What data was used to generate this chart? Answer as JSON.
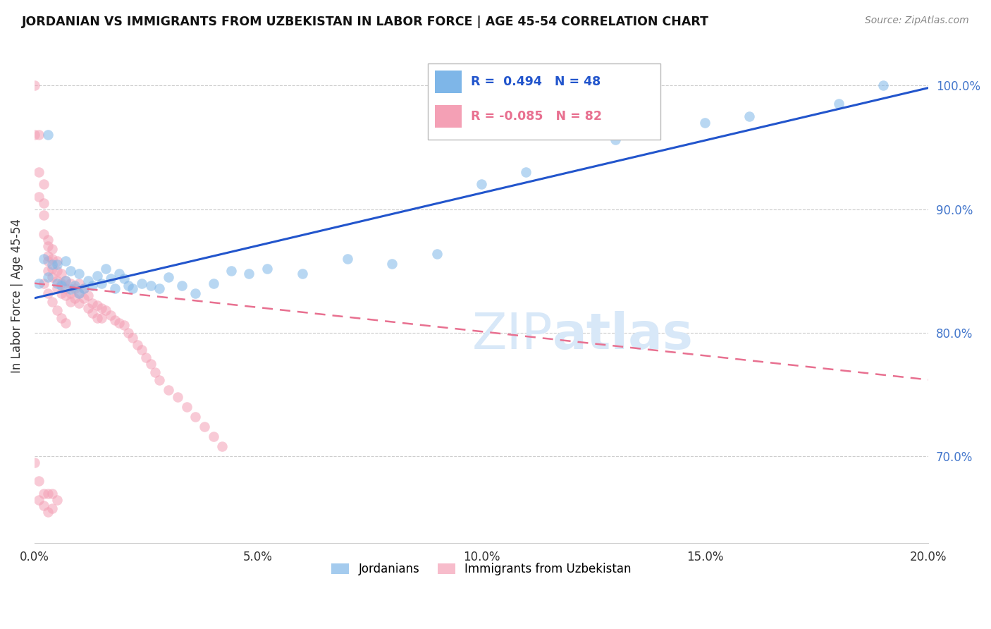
{
  "title": "JORDANIAN VS IMMIGRANTS FROM UZBEKISTAN IN LABOR FORCE | AGE 45-54 CORRELATION CHART",
  "source": "Source: ZipAtlas.com",
  "ylabel": "In Labor Force | Age 45-54",
  "xlim": [
    0.0,
    0.2
  ],
  "ylim": [
    0.63,
    1.03
  ],
  "yticks_right": [
    0.7,
    0.8,
    0.9,
    1.0
  ],
  "ytick_labels_right": [
    "70.0%",
    "80.0%",
    "90.0%",
    "100.0%"
  ],
  "xticks": [
    0.0,
    0.05,
    0.1,
    0.15,
    0.2
  ],
  "xtick_labels": [
    "0.0%",
    "5.0%",
    "10.0%",
    "15.0%",
    "20.0%"
  ],
  "legend_blue_r": "R =  0.494",
  "legend_blue_n": "N = 48",
  "legend_pink_r": "R = -0.085",
  "legend_pink_n": "N = 82",
  "blue_color": "#7EB6E8",
  "pink_color": "#F4A0B5",
  "trend_blue_color": "#2255CC",
  "trend_pink_color": "#E87090",
  "watermark_color": "#D8E8F8",
  "blue_points_x": [
    0.001,
    0.002,
    0.003,
    0.004,
    0.005,
    0.005,
    0.006,
    0.007,
    0.007,
    0.008,
    0.008,
    0.009,
    0.01,
    0.01,
    0.011,
    0.012,
    0.013,
    0.014,
    0.015,
    0.016,
    0.017,
    0.018,
    0.019,
    0.02,
    0.021,
    0.022,
    0.024,
    0.026,
    0.028,
    0.03,
    0.033,
    0.036,
    0.04,
    0.044,
    0.048,
    0.052,
    0.06,
    0.07,
    0.08,
    0.09,
    0.1,
    0.11,
    0.13,
    0.15,
    0.16,
    0.18,
    0.19,
    0.003
  ],
  "blue_points_y": [
    0.84,
    0.86,
    0.845,
    0.855,
    0.84,
    0.855,
    0.838,
    0.842,
    0.858,
    0.835,
    0.85,
    0.838,
    0.832,
    0.848,
    0.836,
    0.842,
    0.838,
    0.846,
    0.84,
    0.852,
    0.844,
    0.836,
    0.848,
    0.844,
    0.838,
    0.836,
    0.84,
    0.838,
    0.836,
    0.845,
    0.838,
    0.832,
    0.84,
    0.85,
    0.848,
    0.852,
    0.848,
    0.86,
    0.856,
    0.864,
    0.92,
    0.93,
    0.956,
    0.97,
    0.975,
    0.985,
    1.0,
    0.96
  ],
  "pink_points_x": [
    0.0,
    0.0,
    0.001,
    0.001,
    0.001,
    0.002,
    0.002,
    0.002,
    0.002,
    0.003,
    0.003,
    0.003,
    0.003,
    0.003,
    0.004,
    0.004,
    0.004,
    0.004,
    0.005,
    0.005,
    0.005,
    0.005,
    0.006,
    0.006,
    0.006,
    0.007,
    0.007,
    0.007,
    0.008,
    0.008,
    0.008,
    0.009,
    0.009,
    0.01,
    0.01,
    0.01,
    0.011,
    0.011,
    0.012,
    0.012,
    0.013,
    0.013,
    0.014,
    0.014,
    0.015,
    0.015,
    0.016,
    0.017,
    0.018,
    0.019,
    0.02,
    0.021,
    0.022,
    0.023,
    0.024,
    0.025,
    0.026,
    0.027,
    0.028,
    0.03,
    0.032,
    0.034,
    0.036,
    0.038,
    0.04,
    0.042,
    0.002,
    0.003,
    0.004,
    0.005,
    0.006,
    0.007,
    0.0,
    0.001,
    0.001,
    0.002,
    0.002,
    0.003,
    0.003,
    0.004,
    0.004,
    0.005
  ],
  "pink_points_y": [
    0.96,
    1.0,
    0.96,
    0.93,
    0.91,
    0.92,
    0.905,
    0.895,
    0.88,
    0.875,
    0.87,
    0.862,
    0.858,
    0.85,
    0.868,
    0.86,
    0.852,
    0.845,
    0.858,
    0.85,
    0.842,
    0.836,
    0.848,
    0.84,
    0.832,
    0.842,
    0.836,
    0.83,
    0.84,
    0.832,
    0.825,
    0.836,
    0.828,
    0.84,
    0.832,
    0.824,
    0.836,
    0.828,
    0.83,
    0.82,
    0.824,
    0.816,
    0.822,
    0.812,
    0.82,
    0.812,
    0.818,
    0.814,
    0.81,
    0.808,
    0.806,
    0.8,
    0.796,
    0.79,
    0.786,
    0.78,
    0.775,
    0.768,
    0.762,
    0.754,
    0.748,
    0.74,
    0.732,
    0.724,
    0.716,
    0.708,
    0.84,
    0.832,
    0.825,
    0.818,
    0.812,
    0.808,
    0.695,
    0.68,
    0.665,
    0.67,
    0.66,
    0.67,
    0.655,
    0.67,
    0.658,
    0.665
  ],
  "blue_trend_x": [
    0.0,
    0.2
  ],
  "blue_trend_y": [
    0.828,
    0.998
  ],
  "pink_trend_x": [
    0.0,
    0.2
  ],
  "pink_trend_y": [
    0.84,
    0.762
  ]
}
